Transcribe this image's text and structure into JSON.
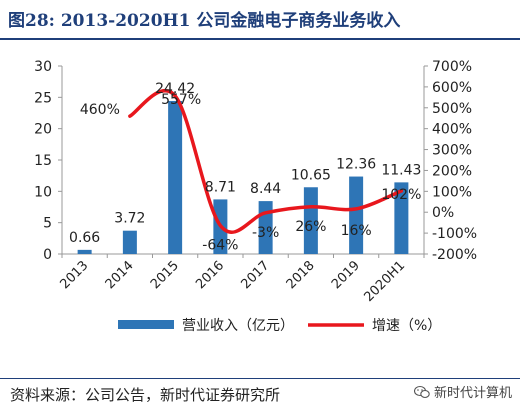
{
  "header": {
    "title": "图28:   2013-2020H1 公司金融电子商务业务收入"
  },
  "chart_data": {
    "type": "bar",
    "categories": [
      "2013",
      "2014",
      "2015",
      "2016",
      "2017",
      "2018",
      "2019",
      "2020H1"
    ],
    "series": [
      {
        "name": "营业收入（亿元）",
        "type": "bar",
        "axis": "left",
        "color": "#2e75b6",
        "values": [
          0.66,
          3.72,
          24.42,
          8.71,
          8.44,
          10.65,
          12.36,
          11.43
        ],
        "labels": [
          "0.66",
          "3.72",
          "24.42",
          "8.71",
          "8.44",
          "10.65",
          "12.36",
          "11.43"
        ]
      },
      {
        "name": "增速（%）",
        "type": "line",
        "axis": "right",
        "color": "#e8171d",
        "values": [
          null,
          460,
          557,
          -64,
          -3,
          26,
          16,
          102
        ],
        "labels": [
          "",
          "460%",
          "557%",
          "-64%",
          "-3%",
          "26%",
          "16%",
          "102%"
        ]
      }
    ],
    "y_left": {
      "min": 0,
      "max": 30,
      "ticks": [
        "0",
        "5",
        "10",
        "15",
        "20",
        "25",
        "30"
      ]
    },
    "y_right": {
      "min": -200,
      "max": 700,
      "ticks": [
        "-200%",
        "-100%",
        "0%",
        "100%",
        "200%",
        "300%",
        "400%",
        "500%",
        "600%",
        "700%"
      ]
    },
    "legend_position": "bottom",
    "grid": false
  },
  "footer": {
    "source": "资料来源：公司公告，新时代证券研究所",
    "watermark": "新时代计算机"
  }
}
